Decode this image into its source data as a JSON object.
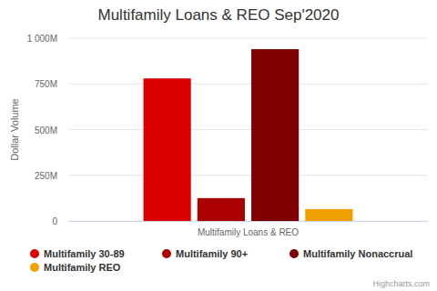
{
  "chart_data": {
    "type": "bar",
    "title": "Multifamily Loans & REO Sep'2020",
    "y_label": "Dollar Volume",
    "credits": "Highcharts.com",
    "categories": [
      "Multifamily Loans & REO"
    ],
    "series": [
      {
        "name": "Multifamily 30-89",
        "color": "#dd0000",
        "values": [
          780
        ]
      },
      {
        "name": "Multifamily 90+",
        "color": "#aa0000",
        "values": [
          125
        ]
      },
      {
        "name": "Multifamily Nonaccrual",
        "color": "#7f0000",
        "values": [
          940
        ]
      },
      {
        "name": "Multifamily REO",
        "color": "#f0a000",
        "values": [
          65
        ]
      }
    ],
    "ylim": [
      0,
      1000
    ],
    "yticks": [
      0,
      {
        "value": 250,
        "label": "250M"
      },
      {
        "value": 500,
        "label": "500M"
      },
      {
        "value": 750,
        "label": "750M"
      },
      {
        "value": 1000,
        "label": "1 000M"
      }
    ],
    "grid": true,
    "legend": "bottom"
  }
}
